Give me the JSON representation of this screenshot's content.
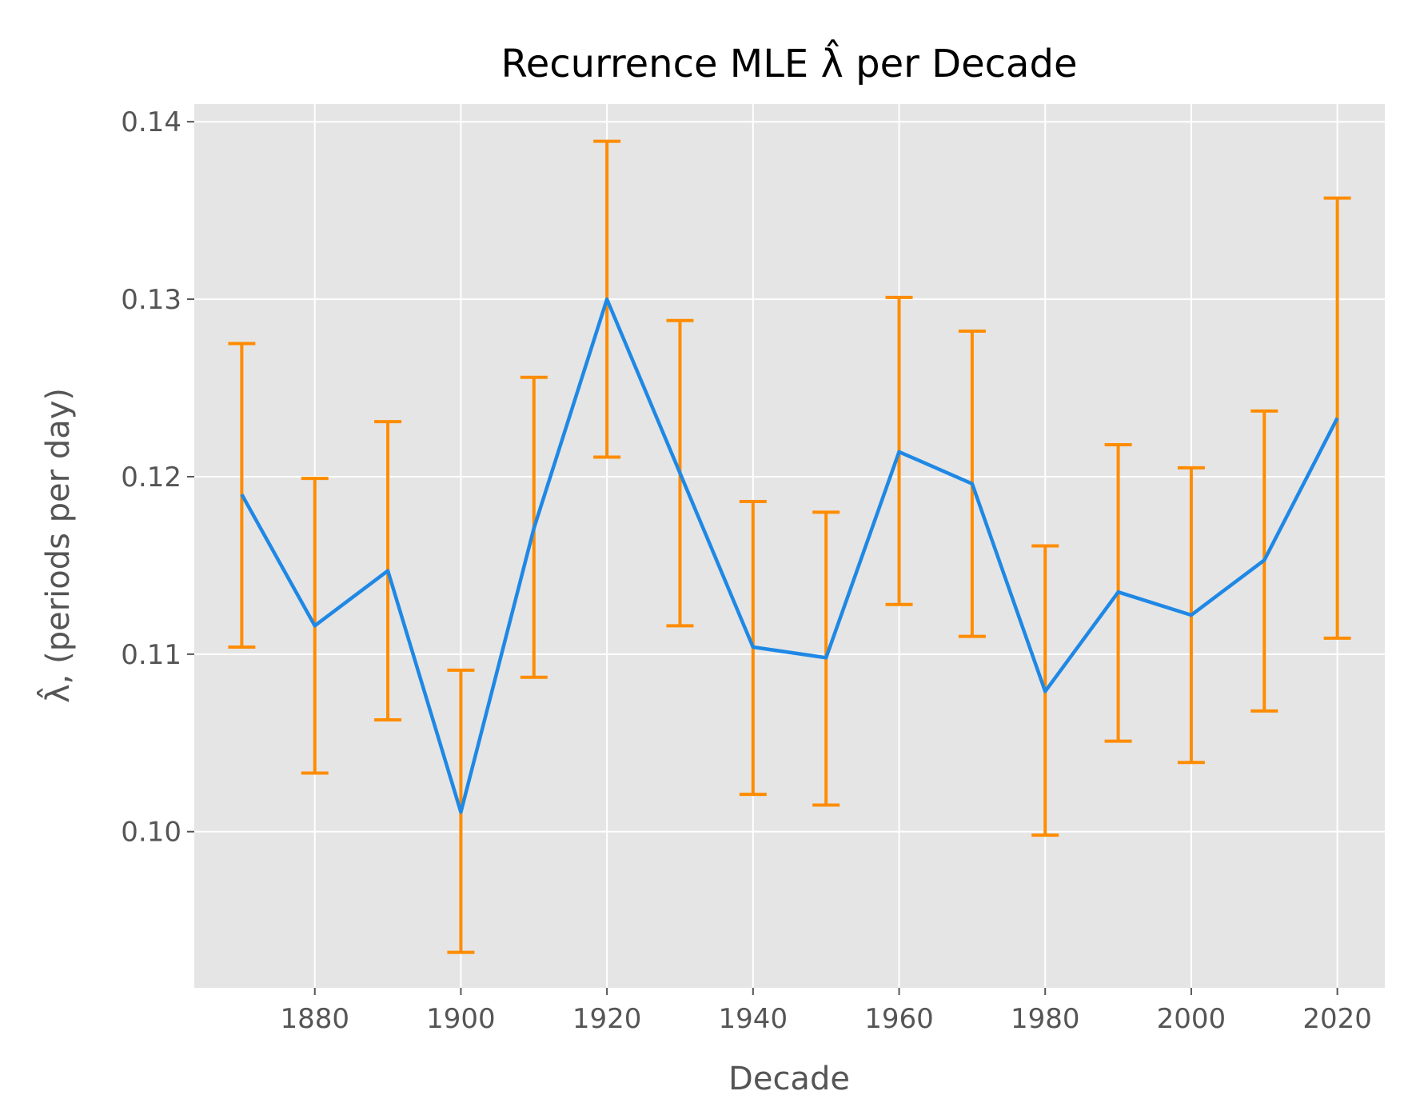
{
  "chart_data": {
    "type": "line",
    "title": "Recurrence MLE λ̂ per Decade",
    "xlabel": "Decade",
    "ylabel": "λ̂, (periods per day)",
    "x": [
      1870,
      1880,
      1890,
      1900,
      1910,
      1920,
      1930,
      1940,
      1950,
      1960,
      1970,
      1980,
      1990,
      2000,
      2010,
      2020
    ],
    "series": [
      {
        "values": [
          0.119,
          0.1116,
          0.1147,
          0.1011,
          0.1171,
          0.13,
          0.1202,
          0.1104,
          0.1098,
          0.1214,
          0.1196,
          0.1079,
          0.1135,
          0.1122,
          0.1153,
          0.1233
        ],
        "lower": [
          0.1104,
          0.1033,
          0.1063,
          0.0932,
          0.1087,
          0.1211,
          0.1116,
          0.1021,
          0.1015,
          0.1128,
          0.111,
          0.0998,
          0.1051,
          0.1039,
          0.1068,
          0.1109
        ],
        "upper": [
          0.1275,
          0.1199,
          0.1231,
          0.1091,
          0.1256,
          0.1389,
          0.1288,
          0.1186,
          0.118,
          0.1301,
          0.1282,
          0.1161,
          0.1218,
          0.1205,
          0.1237,
          0.1357
        ],
        "color": "#1f88e5",
        "error_color": "#ff8c00"
      }
    ],
    "xlim": [
      1863.5,
      2026.5
    ],
    "ylim": [
      0.0912,
      0.141
    ],
    "xticks": [
      "1880",
      "1900",
      "1920",
      "1940",
      "1960",
      "1980",
      "2000",
      "2020"
    ],
    "yticks": [
      "0.10",
      "0.11",
      "0.12",
      "0.13",
      "0.14"
    ],
    "grid": true,
    "background": "#e5e5e5"
  }
}
